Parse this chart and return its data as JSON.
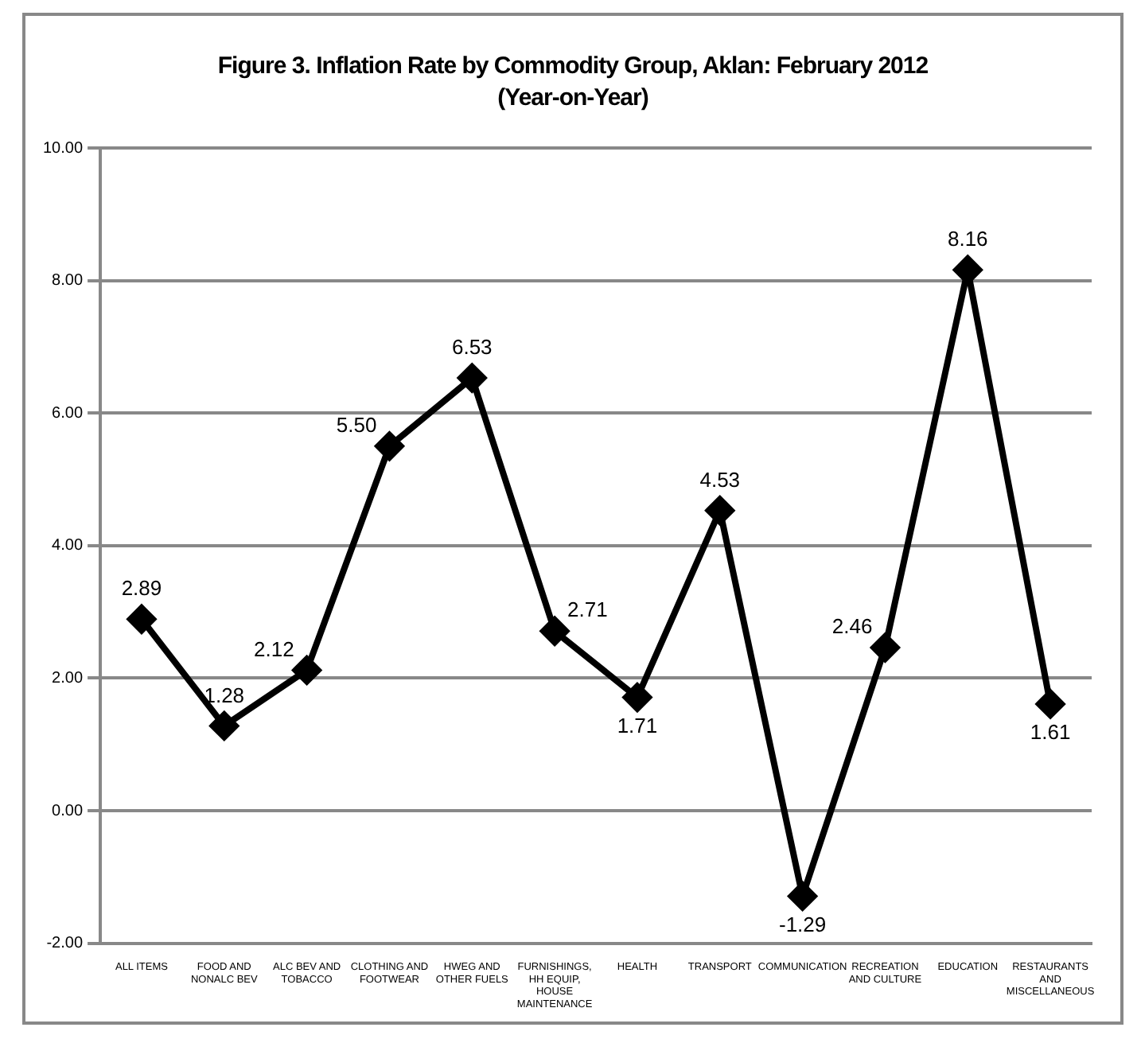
{
  "chart_data": {
    "type": "line",
    "title": "Figure 3. Inflation Rate by Commodity Group, Aklan: February 2012",
    "subtitle": "(Year-on-Year)",
    "categories": [
      "ALL ITEMS",
      "FOOD AND NONALC BEV",
      "ALC BEV AND TOBACCO",
      "CLOTHING AND FOOTWEAR",
      "HWEG AND OTHER FUELS",
      "FURNISHINGS, HH EQUIP, HOUSE MAINTENANCE",
      "HEALTH",
      "TRANSPORT",
      "COMMUNICATION",
      "RECREATION AND CULTURE",
      "EDUCATION",
      "RESTAURANTS AND MISCELLANEOUS"
    ],
    "series": [
      {
        "color": "#000000",
        "values": [
          2.89,
          1.28,
          2.12,
          5.5,
          6.53,
          2.71,
          1.71,
          4.53,
          -1.29,
          2.46,
          8.16,
          1.61
        ]
      }
    ],
    "value_labels": [
      "2.89",
      "1.28",
      "2.12",
      "5.50",
      "6.53",
      "2.71",
      "1.71",
      "4.53",
      "-1.29",
      "2.46",
      "8.16",
      "1.61"
    ],
    "ylim": [
      -2,
      10
    ],
    "yticks": [
      {
        "value": -2,
        "label": "-2.00"
      },
      {
        "value": 0,
        "label": "0.00"
      },
      {
        "value": 2,
        "label": "2.00"
      },
      {
        "value": 4,
        "label": "4.00"
      },
      {
        "value": 6,
        "label": "6.00"
      },
      {
        "value": 8,
        "label": "8.00"
      },
      {
        "value": 10,
        "label": "10.00"
      }
    ],
    "grid": "y",
    "legend": false,
    "marker": "diamond",
    "line_style": "solid"
  }
}
